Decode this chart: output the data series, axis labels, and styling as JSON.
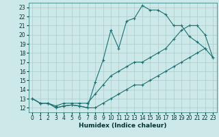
{
  "xlabel": "Humidex (Indice chaleur)",
  "bg_color": "#cce8e8",
  "grid_color": "#aacccc",
  "line_color": "#1a7070",
  "ylim": [
    11.5,
    23.5
  ],
  "xlim": [
    -0.5,
    23.5
  ],
  "yticks": [
    12,
    13,
    14,
    15,
    16,
    17,
    18,
    19,
    20,
    21,
    22,
    23
  ],
  "xticks": [
    0,
    1,
    2,
    3,
    4,
    5,
    6,
    7,
    8,
    9,
    10,
    11,
    12,
    13,
    14,
    15,
    16,
    17,
    18,
    19,
    20,
    21,
    22,
    23
  ],
  "line1_x": [
    0,
    1,
    2,
    3,
    4,
    5,
    6,
    7,
    8,
    9,
    10,
    11,
    12,
    13,
    14,
    15,
    16,
    17,
    18,
    19,
    20,
    21,
    22,
    23
  ],
  "line1_y": [
    13,
    12.5,
    12.5,
    12.0,
    12.2,
    12.3,
    12.2,
    12.0,
    12.0,
    12.5,
    13.0,
    13.5,
    14.0,
    14.5,
    14.5,
    15.0,
    15.5,
    16.0,
    16.5,
    17.0,
    17.5,
    18.0,
    18.5,
    17.5
  ],
  "line2_x": [
    0,
    1,
    2,
    3,
    4,
    5,
    6,
    7,
    8,
    9,
    10,
    11,
    12,
    13,
    14,
    15,
    16,
    17,
    18,
    19,
    20,
    21,
    22,
    23
  ],
  "line2_y": [
    13,
    12.5,
    12.5,
    12.2,
    12.5,
    12.5,
    12.5,
    12.5,
    13.5,
    14.5,
    15.5,
    16.0,
    16.5,
    17.0,
    17.0,
    17.5,
    18.0,
    18.5,
    19.5,
    20.5,
    21.0,
    21.0,
    20.0,
    17.5
  ],
  "line3_x": [
    0,
    1,
    2,
    3,
    4,
    5,
    6,
    7,
    8,
    9,
    10,
    11,
    12,
    13,
    14,
    15,
    16,
    17,
    18,
    19,
    20,
    21,
    22
  ],
  "line3_y": [
    13,
    12.5,
    12.5,
    12.0,
    12.2,
    12.3,
    12.2,
    12.0,
    14.8,
    17.2,
    20.5,
    18.5,
    21.5,
    21.8,
    23.2,
    22.7,
    22.7,
    22.2,
    21.0,
    21.0,
    19.8,
    19.2,
    18.5
  ]
}
